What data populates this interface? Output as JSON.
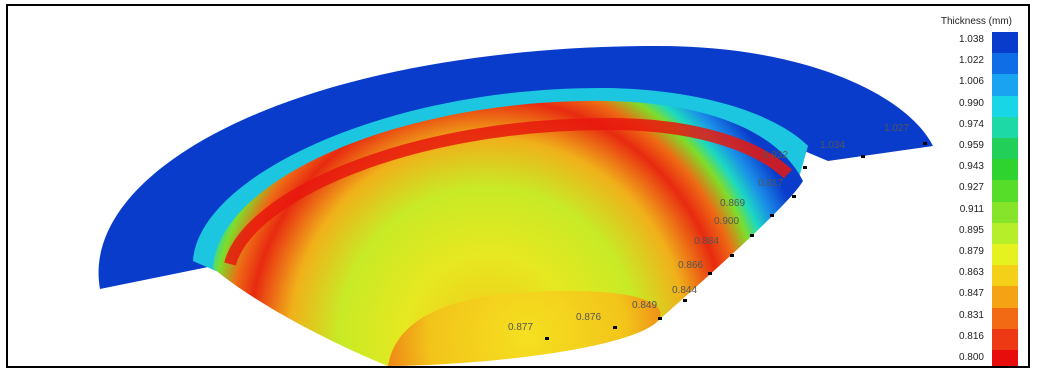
{
  "legend": {
    "title": "Thickness (mm)",
    "entries": [
      {
        "value": "1.038",
        "color": "#0a3ccc"
      },
      {
        "value": "1.022",
        "color": "#0f6ee6"
      },
      {
        "value": "1.006",
        "color": "#1aa3f0"
      },
      {
        "value": "0.990",
        "color": "#19d6e6"
      },
      {
        "value": "0.974",
        "color": "#1cd9a6"
      },
      {
        "value": "0.959",
        "color": "#22cf58"
      },
      {
        "value": "0.943",
        "color": "#2fd32f"
      },
      {
        "value": "0.927",
        "color": "#56dd2a"
      },
      {
        "value": "0.911",
        "color": "#86e52a"
      },
      {
        "value": "0.895",
        "color": "#b6ee2a"
      },
      {
        "value": "0.879",
        "color": "#e6f21f"
      },
      {
        "value": "0.863",
        "color": "#f5d018"
      },
      {
        "value": "0.847",
        "color": "#f5a214"
      },
      {
        "value": "0.831",
        "color": "#f26a14"
      },
      {
        "value": "0.816",
        "color": "#ee3a14"
      },
      {
        "value": "0.800",
        "color": "#e80d0d"
      }
    ]
  },
  "probes": [
    {
      "value": "1.027"
    },
    {
      "value": "1.034"
    },
    {
      "value": "0.932"
    },
    {
      "value": "0.817"
    },
    {
      "value": "0.869"
    },
    {
      "value": "0.900"
    },
    {
      "value": "0.884"
    },
    {
      "value": "0.866"
    },
    {
      "value": "0.844"
    },
    {
      "value": "0.849"
    },
    {
      "value": "0.876"
    },
    {
      "value": "0.877"
    }
  ]
}
